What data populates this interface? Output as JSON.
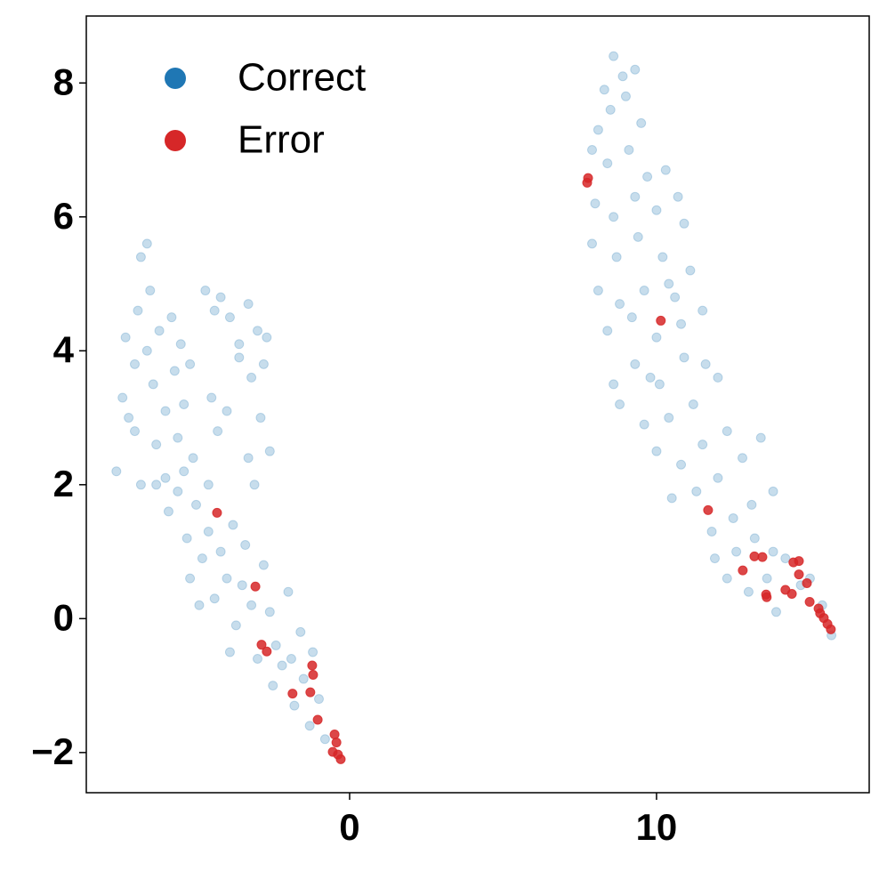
{
  "chart_data": {
    "type": "scatter",
    "xlim": [
      -8.58,
      16.93
    ],
    "ylim": [
      -2.6,
      9.0
    ],
    "xticks": [
      0,
      10
    ],
    "yticks": [
      {
        "value": -2,
        "label": "−2"
      },
      0,
      2,
      4,
      6,
      8
    ],
    "legend": "upper left",
    "series": [
      {
        "name": "Correct",
        "color": "#1f77b4",
        "opacity": 0.25,
        "x": [
          -7.6,
          -7.4,
          -7.3,
          -7.0,
          -7.0,
          -6.9,
          -6.8,
          -6.6,
          -6.5,
          -6.4,
          -6.3,
          -6.2,
          -6.0,
          -6.0,
          -5.8,
          -5.7,
          -5.6,
          -5.5,
          -5.4,
          -5.2,
          -5.1,
          -6.8,
          -7.2,
          -6.6,
          -4.7,
          -4.4,
          -4.2,
          -3.9,
          -3.6,
          -3.3,
          -3.0,
          -2.7,
          -3.2,
          -2.9,
          -3.3,
          -2.6,
          -4.0,
          -4.3,
          -3.6,
          -2.8,
          -4.5,
          -3.1,
          -6.3,
          -5.9,
          -5.6,
          -5.3,
          -5.0,
          -4.8,
          -5.2,
          -4.6,
          -4.4,
          -4.2,
          -4.0,
          -3.8,
          -3.7,
          -3.5,
          -3.4,
          -3.2,
          -3.0,
          -2.8,
          -2.6,
          -2.4,
          -2.2,
          -2.0,
          -1.8,
          -1.6,
          -1.5,
          -1.3,
          -1.2,
          -1.0,
          -0.8,
          -4.9,
          -3.9,
          -2.5,
          -1.9,
          -4.6,
          -5.4,
          8.6,
          8.9,
          9.3,
          8.3,
          8.1,
          8.5,
          9.0,
          9.5,
          7.9,
          8.4,
          9.1,
          9.7,
          10.3,
          8.0,
          8.6,
          9.3,
          10.0,
          10.7,
          7.9,
          8.7,
          9.4,
          10.2,
          10.9,
          8.1,
          8.8,
          9.6,
          10.4,
          11.1,
          8.4,
          9.2,
          10.0,
          10.8,
          11.5,
          8.6,
          9.3,
          10.1,
          10.9,
          11.6,
          8.8,
          9.6,
          10.4,
          11.2,
          12.0,
          10.0,
          10.8,
          11.5,
          12.3,
          10.5,
          11.3,
          12.0,
          12.8,
          13.4,
          13.8,
          11.8,
          12.5,
          13.1,
          11.9,
          12.6,
          13.2,
          13.8,
          12.3,
          13.0,
          13.6,
          14.2,
          14.7,
          15.0,
          15.4,
          15.7,
          13.9,
          9.8,
          10.6
        ],
        "values": [
          2.2,
          3.3,
          4.2,
          2.8,
          3.8,
          4.6,
          5.4,
          5.6,
          4.9,
          3.5,
          2.6,
          4.3,
          3.1,
          2.1,
          4.5,
          3.7,
          2.7,
          4.1,
          3.2,
          3.8,
          2.4,
          2.0,
          3.0,
          4.0,
          4.9,
          4.6,
          4.8,
          4.5,
          4.1,
          4.7,
          4.3,
          4.2,
          3.6,
          3.0,
          2.4,
          2.5,
          3.1,
          2.8,
          3.9,
          3.8,
          3.3,
          2.0,
          2.0,
          1.6,
          1.9,
          1.2,
          1.7,
          0.9,
          0.6,
          1.3,
          0.3,
          1.0,
          0.6,
          1.4,
          -0.1,
          0.5,
          1.1,
          0.2,
          -0.6,
          0.8,
          0.1,
          -0.4,
          -0.7,
          0.4,
          -1.3,
          -0.2,
          -0.9,
          -1.6,
          -0.5,
          -1.2,
          -1.8,
          0.2,
          -0.5,
          -1.0,
          -0.6,
          2.0,
          2.2,
          8.4,
          8.1,
          8.2,
          7.9,
          7.3,
          7.6,
          7.8,
          7.4,
          7.0,
          6.8,
          7.0,
          6.6,
          6.7,
          6.2,
          6.0,
          6.3,
          6.1,
          6.3,
          5.6,
          5.4,
          5.7,
          5.4,
          5.9,
          4.9,
          4.7,
          4.9,
          5.0,
          5.2,
          4.3,
          4.5,
          4.2,
          4.4,
          4.6,
          3.5,
          3.8,
          3.5,
          3.9,
          3.8,
          3.2,
          2.9,
          3.0,
          3.2,
          3.6,
          2.5,
          2.3,
          2.6,
          2.8,
          1.8,
          1.9,
          2.1,
          2.4,
          2.7,
          1.9,
          1.3,
          1.5,
          1.7,
          0.9,
          1.0,
          1.2,
          1.0,
          0.6,
          0.4,
          0.6,
          0.9,
          0.5,
          0.6,
          0.2,
          -0.25,
          0.1,
          3.6,
          4.8
        ]
      },
      {
        "name": "Error",
        "color": "#d62728",
        "opacity": 0.85,
        "x": [
          -4.32,
          -3.07,
          -2.87,
          -2.7,
          -1.22,
          -1.19,
          -1.28,
          -1.86,
          -1.04,
          -0.49,
          -0.43,
          -0.55,
          -0.38,
          -0.29,
          7.77,
          7.74,
          10.14,
          11.68,
          12.81,
          13.19,
          13.45,
          13.57,
          13.59,
          14.2,
          14.41,
          14.46,
          14.64,
          14.64,
          14.9,
          14.99,
          15.28,
          15.33,
          15.45,
          15.57,
          15.68
        ],
        "values": [
          1.58,
          0.48,
          -0.39,
          -0.49,
          -0.7,
          -0.84,
          -1.1,
          -1.12,
          -1.51,
          -1.73,
          -1.85,
          -1.99,
          -2.03,
          -2.1,
          6.58,
          6.51,
          4.45,
          1.62,
          0.72,
          0.93,
          0.92,
          0.36,
          0.32,
          0.43,
          0.37,
          0.84,
          0.86,
          0.66,
          0.53,
          0.25,
          0.15,
          0.08,
          0.01,
          -0.08,
          -0.16
        ]
      }
    ]
  }
}
